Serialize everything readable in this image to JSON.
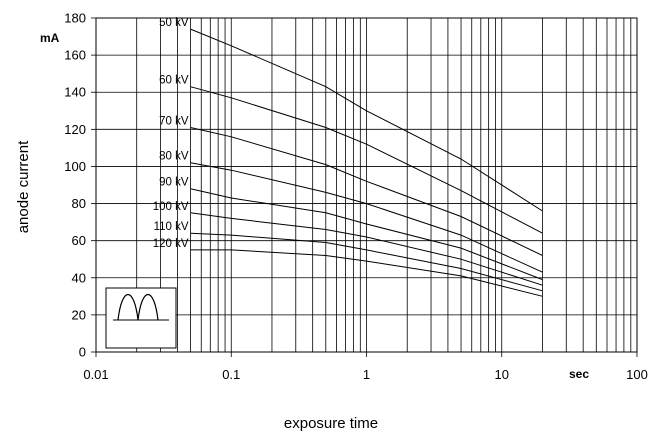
{
  "chart_data": {
    "type": "line",
    "title": "",
    "xlabel": "exposure time",
    "ylabel": "anode current",
    "x_unit": "sec",
    "y_unit": "mA",
    "xscale": "log",
    "xlim": [
      0.01,
      100
    ],
    "ylim": [
      0,
      180
    ],
    "grid": true,
    "legend": "none",
    "x_ticks": [
      0.01,
      0.1,
      1,
      10,
      100
    ],
    "x_tick_labels": [
      "0.01",
      "0.1",
      "1",
      "10",
      "100"
    ],
    "y_ticks": [
      0,
      20,
      40,
      60,
      80,
      100,
      120,
      140,
      160,
      180
    ],
    "y_tick_labels": [
      "0",
      "20",
      "40",
      "60",
      "80",
      "100",
      "120",
      "140",
      "160",
      "180"
    ],
    "series": [
      {
        "name": "50 kV",
        "x": [
          0.05,
          0.1,
          0.5,
          1,
          5,
          20
        ],
        "y": [
          174,
          165,
          143,
          130,
          104,
          76
        ]
      },
      {
        "name": "60 kV",
        "x": [
          0.05,
          0.1,
          0.5,
          1,
          5,
          20
        ],
        "y": [
          143,
          137,
          121,
          112,
          87,
          64
        ]
      },
      {
        "name": "70 kV",
        "x": [
          0.05,
          0.1,
          0.5,
          1,
          5,
          20
        ],
        "y": [
          121,
          116,
          101,
          92,
          73,
          52
        ]
      },
      {
        "name": "80 kV",
        "x": [
          0.05,
          0.1,
          0.5,
          1,
          5,
          20
        ],
        "y": [
          102,
          98,
          86,
          80,
          63,
          43
        ]
      },
      {
        "name": "90 kV",
        "x": [
          0.05,
          0.1,
          0.5,
          1,
          5,
          20
        ],
        "y": [
          88,
          83,
          75,
          69,
          56,
          39
        ]
      },
      {
        "name": "100 kV",
        "x": [
          0.05,
          0.1,
          0.5,
          1,
          5,
          20
        ],
        "y": [
          75,
          72,
          66,
          62,
          50,
          36
        ]
      },
      {
        "name": "110 kV",
        "x": [
          0.05,
          0.1,
          0.5,
          1,
          5,
          20
        ],
        "y": [
          64,
          63,
          59,
          55,
          45,
          33
        ]
      },
      {
        "name": "120 kV",
        "x": [
          0.05,
          0.1,
          0.5,
          1,
          5,
          20
        ],
        "y": [
          55,
          55,
          52,
          49,
          41,
          30
        ]
      }
    ]
  }
}
